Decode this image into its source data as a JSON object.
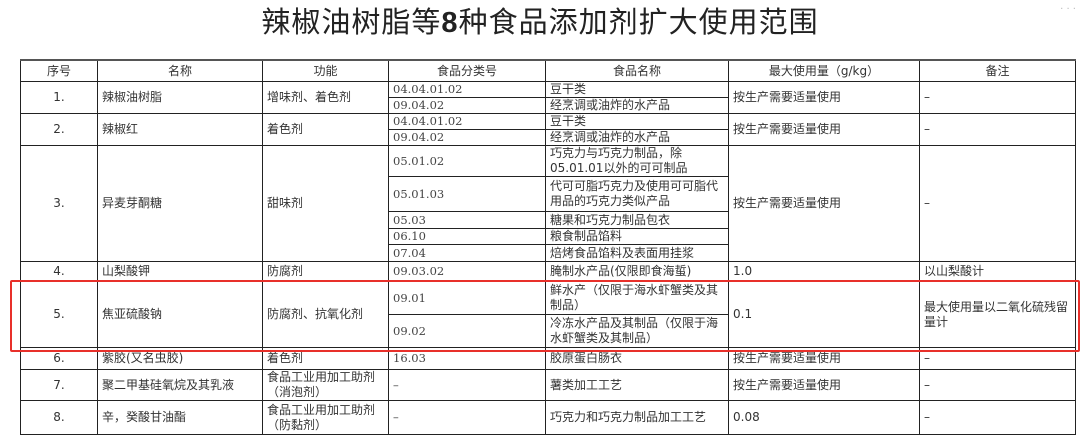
{
  "title_prefix": "辣椒油树脂等",
  "title_number": "8",
  "title_suffix": "种食品添加剂扩大使用范围",
  "highlight_color": "#e8302a",
  "headers": [
    "序号",
    "名称",
    "功能",
    "食品分类号",
    "食品名称",
    "最大使用量（g/kg）",
    "备注"
  ],
  "rows": [
    {
      "no": "1.",
      "name": "辣椒油树脂",
      "func": "增味剂、着色剂",
      "max": "按生产需要适量使用",
      "note": "–",
      "items": [
        {
          "code": "04.04.01.02",
          "food": "豆干类"
        },
        {
          "code": "09.04.02",
          "food": "经烹调或油炸的水产品"
        }
      ]
    },
    {
      "no": "2.",
      "name": "辣椒红",
      "func": "着色剂",
      "max": "按生产需要适量使用",
      "note": "–",
      "items": [
        {
          "code": "04.04.01.02",
          "food": "豆干类"
        },
        {
          "code": "09.04.02",
          "food": "经烹调或油炸的水产品"
        }
      ]
    },
    {
      "no": "3.",
      "name": "异麦芽酮糖",
      "func": "甜味剂",
      "max": "按生产需要适量使用",
      "note": "–",
      "items": [
        {
          "code": "05.01.02",
          "food": "巧克力与巧克力制品，除05.01.01以外的可可制品"
        },
        {
          "code": "05.01.03",
          "food": "代可可脂巧克力及使用可可脂代用品的巧克力类似产品"
        },
        {
          "code": "05.03",
          "food": "糖果和巧克力制品包衣"
        },
        {
          "code": "06.10",
          "food": "粮食制品馅料"
        },
        {
          "code": "07.04",
          "food": "焙烤食品馅料及表面用挂浆"
        }
      ]
    },
    {
      "no": "4.",
      "name": "山梨酸钾",
      "func": "防腐剂",
      "max": "1.0",
      "note": "以山梨酸计",
      "items": [
        {
          "code": "09.03.02",
          "food": "腌制水产品(仅限即食海蜇)"
        }
      ]
    },
    {
      "no": "5.",
      "name": "焦亚硫酸钠",
      "func": "防腐剂、抗氧化剂",
      "max": "0.1",
      "note": "最大使用量以二氧化硫残留量计",
      "highlighted": true,
      "items": [
        {
          "code": "09.01",
          "food": "鲜水产（仅限于海水虾蟹类及其制品）"
        },
        {
          "code": "09.02",
          "food": "冷冻水产品及其制品（仅限于海水虾蟹类及其制品）"
        }
      ]
    },
    {
      "no": "6.",
      "name": "紫胶(又名虫胶)",
      "func": "着色剂",
      "max": "按生产需要适量使用",
      "note": "–",
      "items": [
        {
          "code": "16.03",
          "food": "胶原蛋白肠衣"
        }
      ]
    },
    {
      "no": "7.",
      "name": "聚二甲基硅氧烷及其乳液",
      "func": "食品工业用加工助剂（消泡剂）",
      "max": "按生产需要适量使用",
      "note": "–",
      "items": [
        {
          "code": "–",
          "food": "薯类加工工艺"
        }
      ]
    },
    {
      "no": "8.",
      "name": "辛，癸酸甘油酯",
      "func": "食品工业用加工助剂（防黏剂）",
      "max": "0.08",
      "note": "–",
      "items": [
        {
          "code": "–",
          "food": "巧克力和巧克力制品加工工艺"
        }
      ]
    }
  ]
}
